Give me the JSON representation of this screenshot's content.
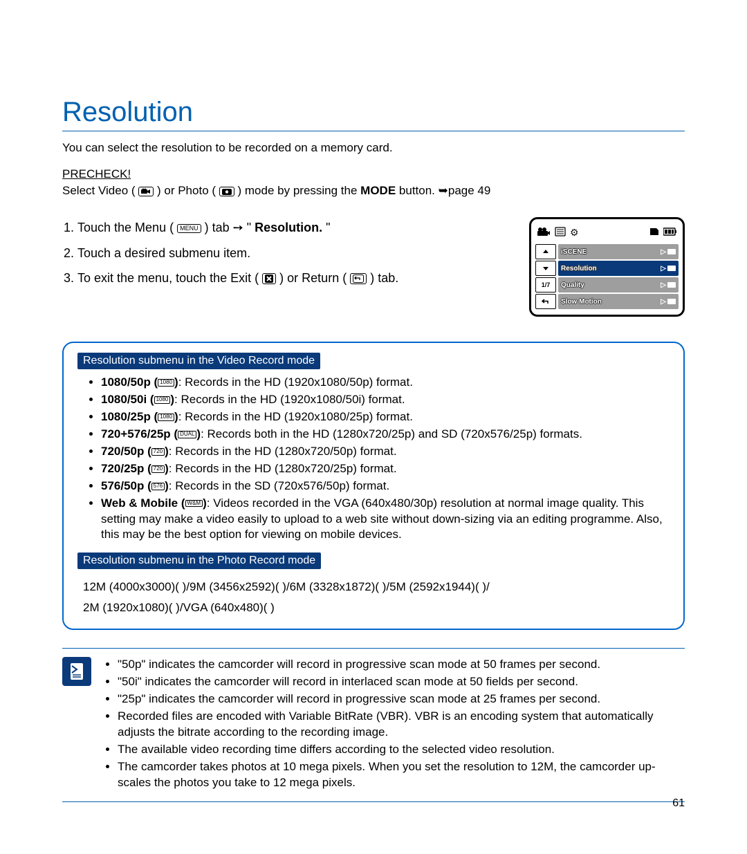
{
  "title": "Resolution",
  "intro": "You can select the resolution to be recorded on a memory card.",
  "precheck": {
    "label": "PRECHECK!",
    "text_before": "Select Video (",
    "text_mid": ") or Photo (",
    "text_after": ") mode by pressing the ",
    "mode_label": "MODE",
    "text_end": " button. ➥page 49"
  },
  "steps": {
    "s1a": "Touch the Menu (",
    "s1_menu": "MENU",
    "s1b": ") tab ➙ \"",
    "s1_bold": "Resolution.",
    "s1c": "\"",
    "s2": "Touch a desired submenu item.",
    "s3a": "To exit the menu, touch the Exit (",
    "s3b": ") or Return (",
    "s3c": ") tab."
  },
  "screen": {
    "page_indicator": "1/7",
    "rows": [
      {
        "left_kind": "up",
        "label": "iSCENE",
        "bg": "grey"
      },
      {
        "left_kind": "down",
        "label": "Resolution",
        "bg": "blue"
      },
      {
        "left_kind": "txt",
        "label": "Quality",
        "bg": "grey"
      },
      {
        "left_kind": "return",
        "label": "Slow Motion",
        "bg": "grey"
      }
    ]
  },
  "video_section": {
    "heading": "Resolution submenu in the Video Record mode",
    "items": [
      {
        "b": "1080/50p (",
        "badge": "1080",
        "t": "): Records in the HD (1920x1080/50p) format."
      },
      {
        "b": "1080/50i (",
        "badge": "1080",
        "t": "): Records in the HD (1920x1080/50i) format."
      },
      {
        "b": "1080/25p (",
        "badge": "1080",
        "t": "): Records in the HD (1920x1080/25p) format."
      },
      {
        "b": "720+576/25p (",
        "badge": "DUAL",
        "t": "): Records both in the HD (1280x720/25p) and SD (720x576/25p) formats."
      },
      {
        "b": "720/50p (",
        "badge": "720",
        "t": "): Records in the HD (1280x720/50p) format."
      },
      {
        "b": "720/25p (",
        "badge": "720",
        "t": "): Records in the HD (1280x720/25p) format."
      },
      {
        "b": "576/50p (",
        "badge": "576",
        "t": "): Records in the SD (720x576/50p) format."
      },
      {
        "b": "Web & Mobile (",
        "badge": "W&M",
        "t": "): Videos recorded in the VGA (640x480/30p) resolution at normal image quality. This setting may make a video easily to upload to a web site without down-sizing via an editing programme. Also, this may be the best option for viewing on mobile devices."
      }
    ]
  },
  "photo_section": {
    "heading": "Resolution submenu in the Photo Record mode",
    "line1": "12M (4000x3000)(   )/9M (3456x2592)(   )/6M (3328x1872)(   )/5M (2592x1944)(   )/",
    "line2": "2M (1920x1080)(   )/VGA (640x480)(   )"
  },
  "notes": [
    "\"50p\" indicates the camcorder will record in progressive scan mode at 50 frames per second.",
    "\"50i\" indicates the camcorder will record in interlaced scan mode at 50 fields per second.",
    "\"25p\" indicates the camcorder will record in progressive scan mode at 25 frames per second.",
    "Recorded files are encoded with Variable BitRate (VBR). VBR is an encoding system that automatically adjusts the bitrate according to the recording image.",
    "The available video recording time differs according to the selected video resolution.",
    "The camcorder takes photos at 10 mega pixels. When you set the resolution to 12M, the camcorder up-scales the photos you take to 12 mega pixels."
  ],
  "page_number": "61"
}
